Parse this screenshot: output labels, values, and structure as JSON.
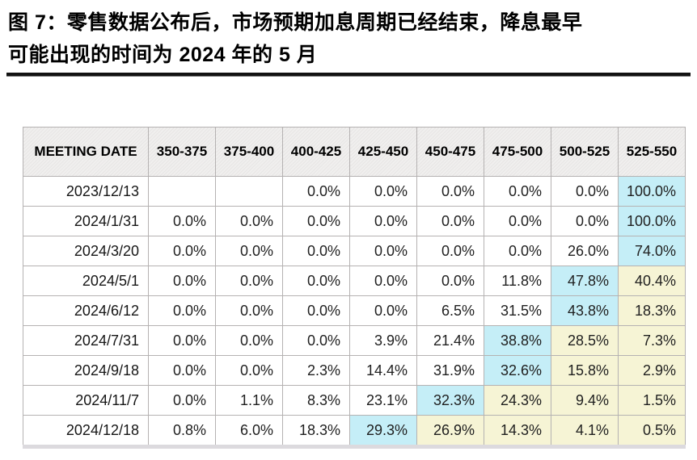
{
  "figure": {
    "title_line1": "图 7：零售数据公布后，市场预期加息周期已经结束，降息最早",
    "title_line2": "可能出现的时间为 2024 年的 5 月"
  },
  "colors": {
    "highlight_max": "#c5eef7",
    "highlight_tail": "#f6f4d5",
    "header_bg": "#f0efee",
    "grid_border": "#b5b2b2",
    "title_rule": "#121212"
  },
  "chart_data": {
    "type": "table",
    "title": "图 7：零售数据公布后，市场预期加息周期已经结束，降息最早可能出现的时间为 2024 年的 5 月",
    "columns": [
      "MEETING DATE",
      "350-375",
      "375-400",
      "400-425",
      "425-450",
      "450-475",
      "475-500",
      "500-525",
      "525-550"
    ],
    "rows": [
      {
        "date": "2023/12/13",
        "values": [
          "",
          "",
          "0.0%",
          "0.0%",
          "0.0%",
          "0.0%",
          "0.0%",
          "100.0%"
        ],
        "highlights": [
          "",
          "",
          "",
          "",
          "",
          "",
          "",
          "cyan"
        ]
      },
      {
        "date": "2024/1/31",
        "values": [
          "0.0%",
          "0.0%",
          "0.0%",
          "0.0%",
          "0.0%",
          "0.0%",
          "0.0%",
          "100.0%"
        ],
        "highlights": [
          "",
          "",
          "",
          "",
          "",
          "",
          "",
          "cyan"
        ]
      },
      {
        "date": "2024/3/20",
        "values": [
          "0.0%",
          "0.0%",
          "0.0%",
          "0.0%",
          "0.0%",
          "0.0%",
          "26.0%",
          "74.0%"
        ],
        "highlights": [
          "",
          "",
          "",
          "",
          "",
          "",
          "",
          "cyan"
        ]
      },
      {
        "date": "2024/5/1",
        "values": [
          "0.0%",
          "0.0%",
          "0.0%",
          "0.0%",
          "0.0%",
          "11.8%",
          "47.8%",
          "40.4%"
        ],
        "highlights": [
          "",
          "",
          "",
          "",
          "",
          "",
          "cyan",
          "yellow"
        ]
      },
      {
        "date": "2024/6/12",
        "values": [
          "0.0%",
          "0.0%",
          "0.0%",
          "0.0%",
          "6.5%",
          "31.5%",
          "43.8%",
          "18.3%"
        ],
        "highlights": [
          "",
          "",
          "",
          "",
          "",
          "",
          "cyan",
          "yellow"
        ]
      },
      {
        "date": "2024/7/31",
        "values": [
          "0.0%",
          "0.0%",
          "0.0%",
          "3.9%",
          "21.4%",
          "38.8%",
          "28.5%",
          "7.3%"
        ],
        "highlights": [
          "",
          "",
          "",
          "",
          "",
          "cyan",
          "yellow",
          "yellow"
        ]
      },
      {
        "date": "2024/9/18",
        "values": [
          "0.0%",
          "0.0%",
          "2.3%",
          "14.4%",
          "31.9%",
          "32.6%",
          "15.8%",
          "2.9%"
        ],
        "highlights": [
          "",
          "",
          "",
          "",
          "",
          "cyan",
          "yellow",
          "yellow"
        ]
      },
      {
        "date": "2024/11/7",
        "values": [
          "0.0%",
          "1.1%",
          "8.3%",
          "23.1%",
          "32.3%",
          "24.3%",
          "9.4%",
          "1.5%"
        ],
        "highlights": [
          "",
          "",
          "",
          "",
          "cyan",
          "yellow",
          "yellow",
          "yellow"
        ]
      },
      {
        "date": "2024/12/18",
        "values": [
          "0.8%",
          "6.0%",
          "18.3%",
          "29.3%",
          "26.9%",
          "14.3%",
          "4.1%",
          "0.5%"
        ],
        "highlights": [
          "",
          "",
          "",
          "cyan",
          "yellow",
          "yellow",
          "yellow",
          "yellow"
        ]
      }
    ]
  }
}
